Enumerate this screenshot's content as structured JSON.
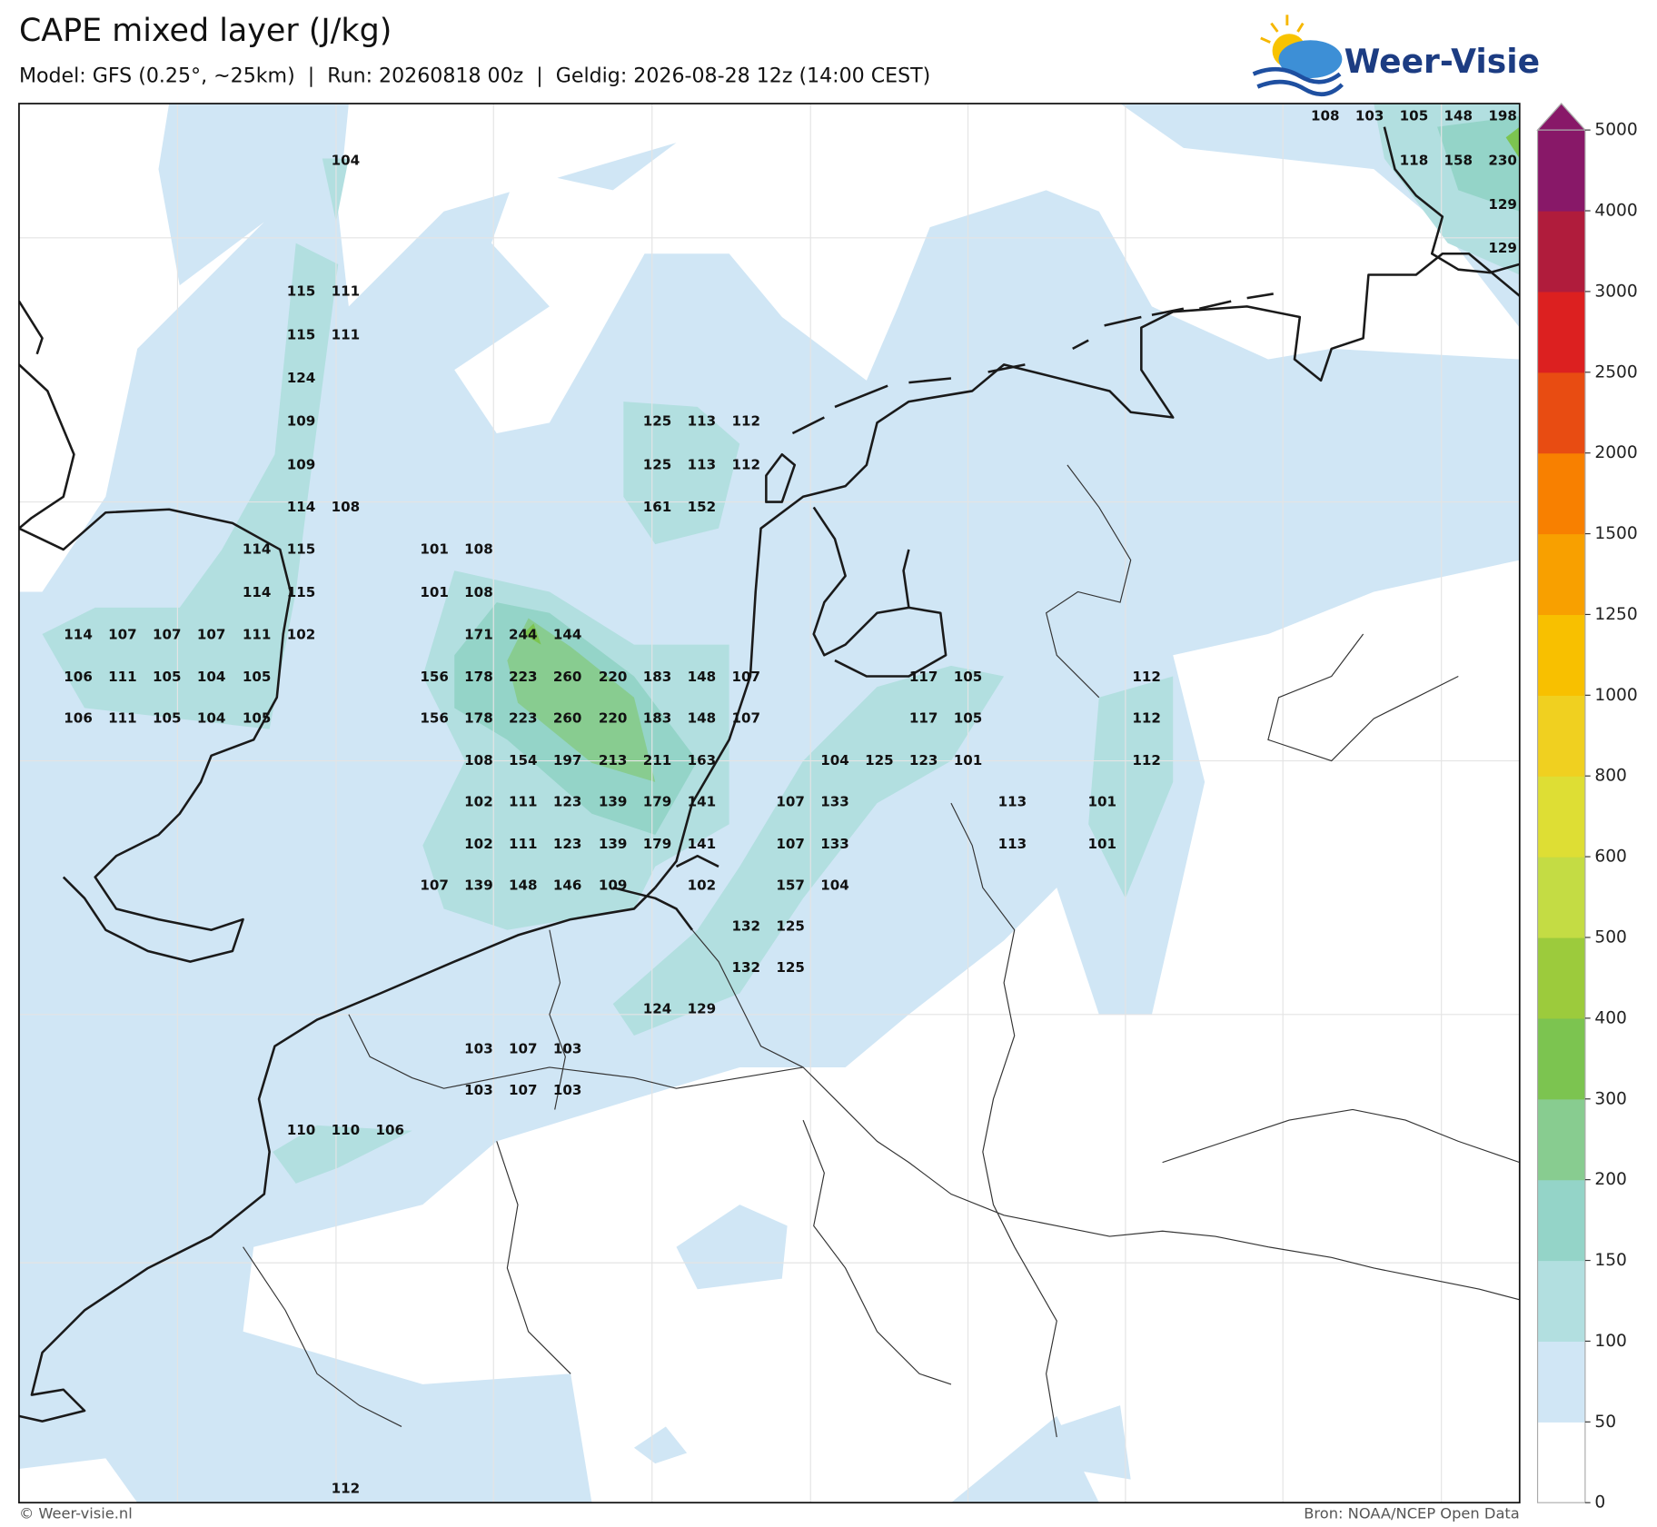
{
  "header": {
    "title": "CAPE mixed layer (J/kg)",
    "subtitle": "Model: GFS (0.25°, ~25km)  |  Run: 20260818 00z  |  Geldig: 2026-08-28 12z (14:00 CEST)",
    "logo": "Weer-Visie"
  },
  "map_labels": [
    108,
    103,
    105,
    148,
    198,
    104,
    118,
    158,
    230,
    129,
    129,
    115,
    111,
    115,
    111,
    124,
    109,
    125,
    113,
    112,
    109,
    125,
    113,
    112,
    114,
    108,
    161,
    152,
    114,
    115,
    101,
    108,
    114,
    115,
    101,
    108,
    114,
    107,
    107,
    107,
    111,
    102,
    171,
    244,
    144,
    106,
    111,
    105,
    104,
    105,
    156,
    178,
    223,
    260,
    220,
    183,
    148,
    107,
    117,
    105,
    112,
    106,
    111,
    105,
    104,
    105,
    156,
    178,
    223,
    260,
    220,
    183,
    148,
    107,
    117,
    105,
    112,
    108,
    154,
    197,
    213,
    211,
    163,
    104,
    125,
    123,
    101,
    112,
    102,
    111,
    123,
    139,
    179,
    141,
    107,
    133,
    113,
    101,
    102,
    111,
    123,
    139,
    179,
    141,
    107,
    133,
    113,
    101,
    107,
    139,
    148,
    146,
    109,
    102,
    157,
    104,
    132,
    125,
    132,
    125,
    124,
    129,
    103,
    107,
    103,
    103,
    107,
    103,
    110,
    110,
    106,
    112
  ],
  "colorbar": {
    "ticks": [
      0,
      50,
      100,
      150,
      200,
      300,
      400,
      500,
      600,
      800,
      1000,
      1250,
      1500,
      2000,
      2500,
      3000,
      4000,
      5000
    ],
    "colors": [
      "#ffffff",
      "#d0e6f5",
      "#b2dfe0",
      "#94d4c8",
      "#88cc90",
      "#7cc450",
      "#9ccb3c",
      "#c4dc44",
      "#dede34",
      "#f0d020",
      "#f8c000",
      "#f8a000",
      "#f88000",
      "#e84c12",
      "#dc2020",
      "#b01c3c",
      "#881868"
    ]
  },
  "footer": {
    "left": "© Weer-visie.nl",
    "right": "Bron: NOAA/NCEP Open Data"
  }
}
